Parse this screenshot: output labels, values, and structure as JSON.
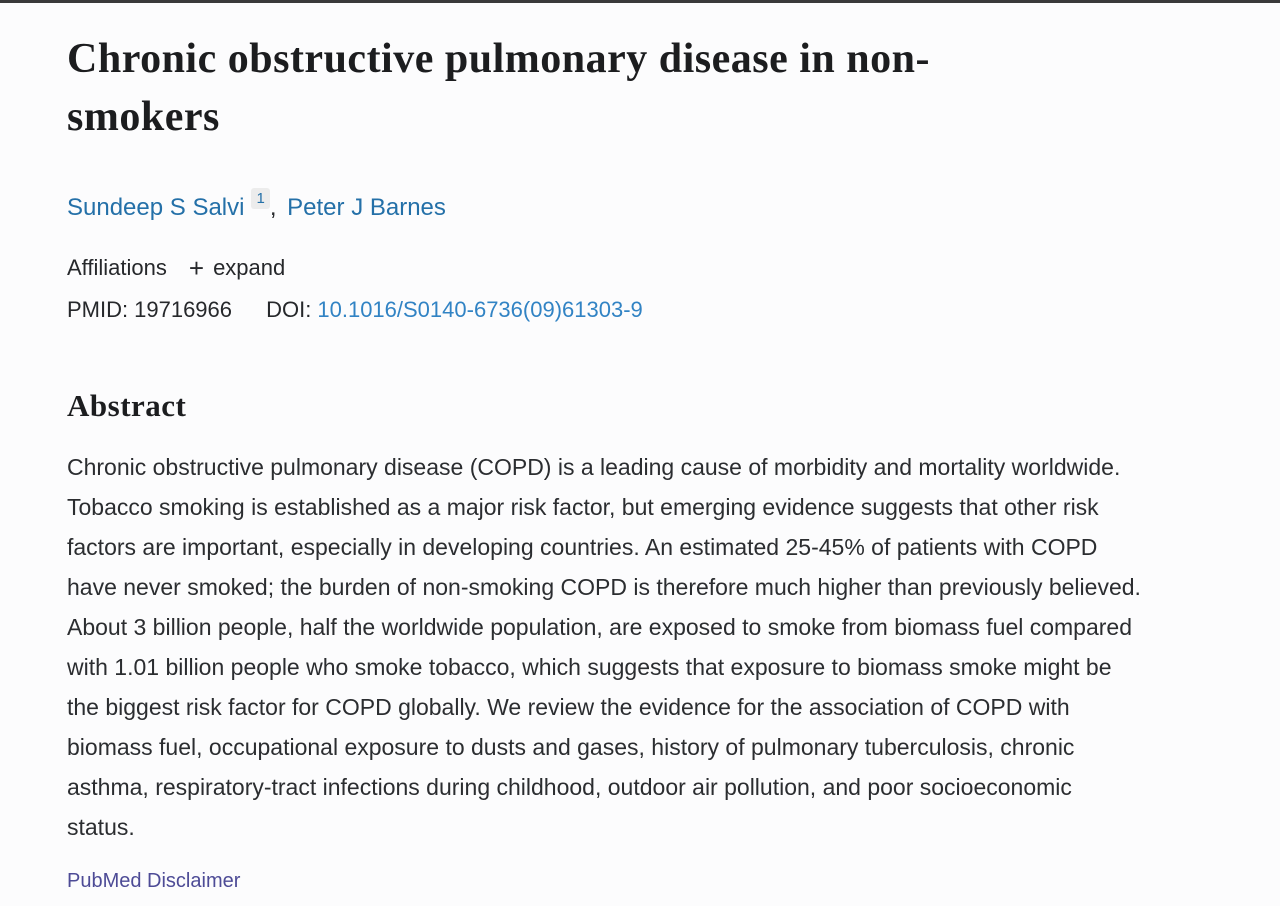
{
  "article": {
    "title": "Chronic obstructive pulmonary disease in non-smokers",
    "authors": [
      {
        "name": "Sundeep S Salvi",
        "affiliation_marker": "1"
      },
      {
        "name": "Peter J Barnes",
        "affiliation_marker": ""
      }
    ],
    "author_separator": ", ",
    "affiliations": {
      "label": "Affiliations",
      "expand_label": "expand"
    },
    "identifiers": {
      "pmid_label": "PMID:",
      "pmid_value": "19716966",
      "doi_label": "DOI:",
      "doi_value": "10.1016/S0140-6736(09)61303-9"
    },
    "abstract": {
      "heading": "Abstract",
      "text": "Chronic obstructive pulmonary disease (COPD) is a leading cause of morbidity and mortality worldwide. Tobacco smoking is established as a major risk factor, but emerging evidence suggests that other risk factors are important, especially in developing countries. An estimated 25-45% of patients with COPD have never smoked; the burden of non-smoking COPD is therefore much higher than previously believed. About 3 billion people, half the worldwide population, are exposed to smoke from biomass fuel compared with 1.01 billion people who smoke tobacco, which suggests that exposure to biomass smoke might be the biggest risk factor for COPD globally. We review the evidence for the association of COPD with biomass fuel, occupational exposure to dusts and gases, history of pulmonary tuberculosis, chronic asthma, respiratory-tract infections during childhood, outdoor air pollution, and poor socioeconomic status."
    },
    "disclaimer_label": "PubMed Disclaimer",
    "icons": {
      "plus": "+"
    },
    "colors": {
      "link_blue": "#2470a8",
      "doi_blue": "#3183c4",
      "disclaimer_purple": "#4d4b96",
      "text_dark": "#26282b"
    }
  }
}
